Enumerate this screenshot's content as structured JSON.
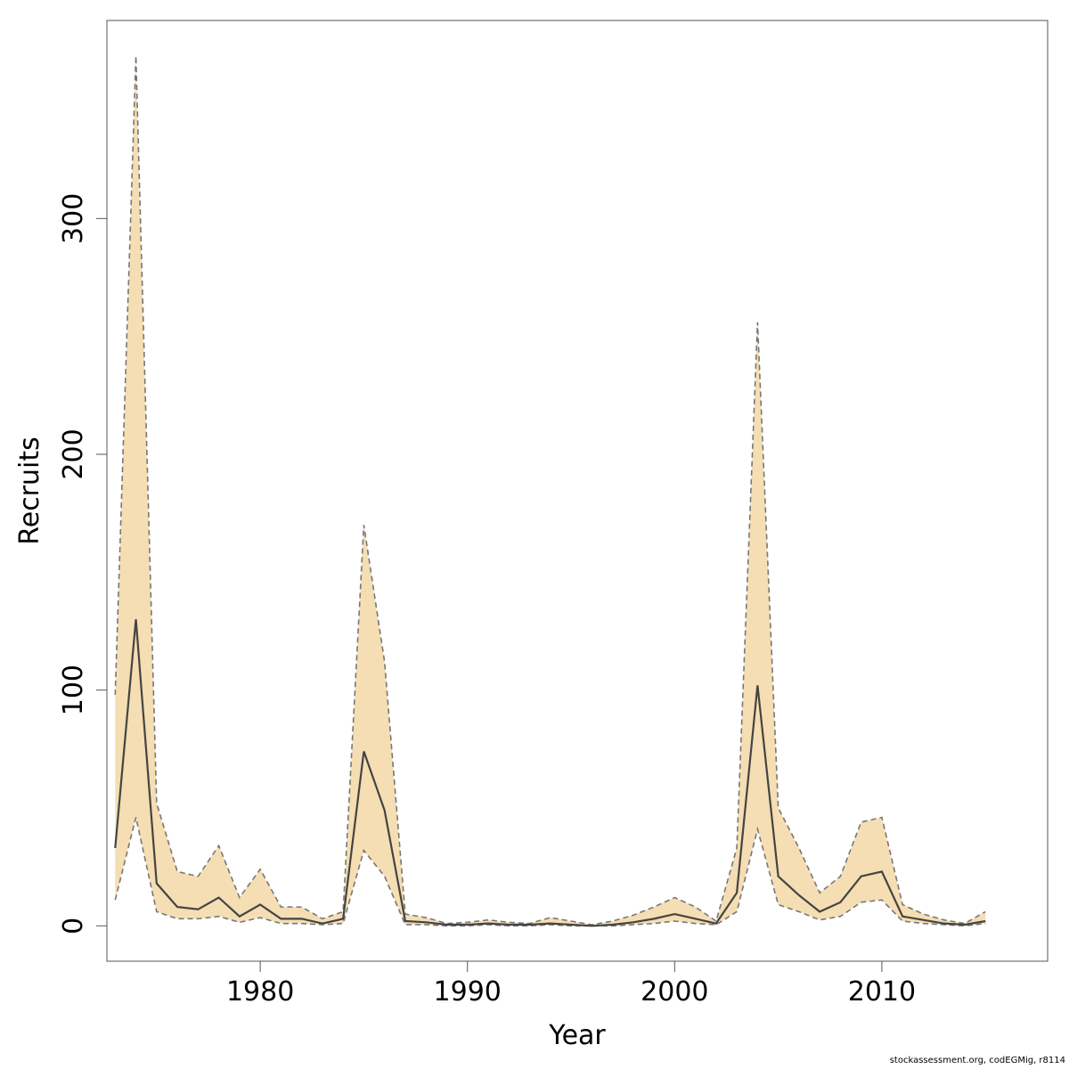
{
  "chart_data": {
    "type": "line",
    "xlabel": "Year",
    "ylabel": "Recruits",
    "xlim": [
      1972.6,
      2018
    ],
    "ylim": [
      -15,
      384
    ],
    "x_ticks": [
      1980,
      1990,
      2000,
      2010
    ],
    "y_ticks": [
      0,
      100,
      200,
      300
    ],
    "grid": false,
    "band_fill": "#f5deb3",
    "line_color": "#444444",
    "bound_color": "#777777",
    "x": [
      1973,
      1974,
      1975,
      1976,
      1977,
      1978,
      1979,
      1980,
      1981,
      1982,
      1983,
      1984,
      1985,
      1986,
      1987,
      1988,
      1989,
      1990,
      1991,
      1992,
      1993,
      1994,
      1995,
      1996,
      1997,
      1998,
      1999,
      2000,
      2001,
      2002,
      2003,
      2004,
      2005,
      2006,
      2007,
      2008,
      2009,
      2010,
      2011,
      2012,
      2013,
      2014,
      2015
    ],
    "series": [
      {
        "role": "estimate",
        "values": [
          33,
          130,
          18,
          8,
          7,
          12,
          4,
          9,
          3,
          3,
          1,
          3,
          74,
          49,
          2,
          1.5,
          0.5,
          0.5,
          1,
          0.5,
          0.5,
          1,
          0.5,
          0,
          0.5,
          1.5,
          3,
          5,
          3,
          1,
          14,
          102,
          21,
          13,
          6,
          10,
          21,
          23,
          4,
          2.5,
          1,
          0.5,
          2
        ]
      },
      {
        "role": "upper",
        "values": [
          98,
          369,
          52,
          23,
          21,
          34,
          12,
          24,
          8,
          8,
          3,
          6,
          170,
          112,
          5,
          3.5,
          1,
          1.5,
          2.5,
          1.5,
          1,
          3.5,
          2,
          0.5,
          2,
          4.5,
          8,
          12,
          8,
          2,
          33,
          256,
          50,
          33,
          14,
          21,
          44,
          46,
          9,
          5,
          2.5,
          1,
          6
        ]
      },
      {
        "role": "lower",
        "values": [
          11,
          46,
          6,
          3,
          3,
          4,
          1.5,
          3.5,
          1,
          1,
          0.5,
          1,
          32,
          21,
          0.5,
          0.5,
          0,
          0,
          0.5,
          0,
          0,
          0.5,
          0,
          0,
          0,
          0.5,
          1,
          2,
          1,
          0.5,
          6,
          41,
          9,
          6,
          2.5,
          4,
          10,
          11,
          2,
          1,
          0.5,
          0,
          1
        ]
      }
    ]
  },
  "credit": "stockassessment.org, codEGMig, r8114"
}
